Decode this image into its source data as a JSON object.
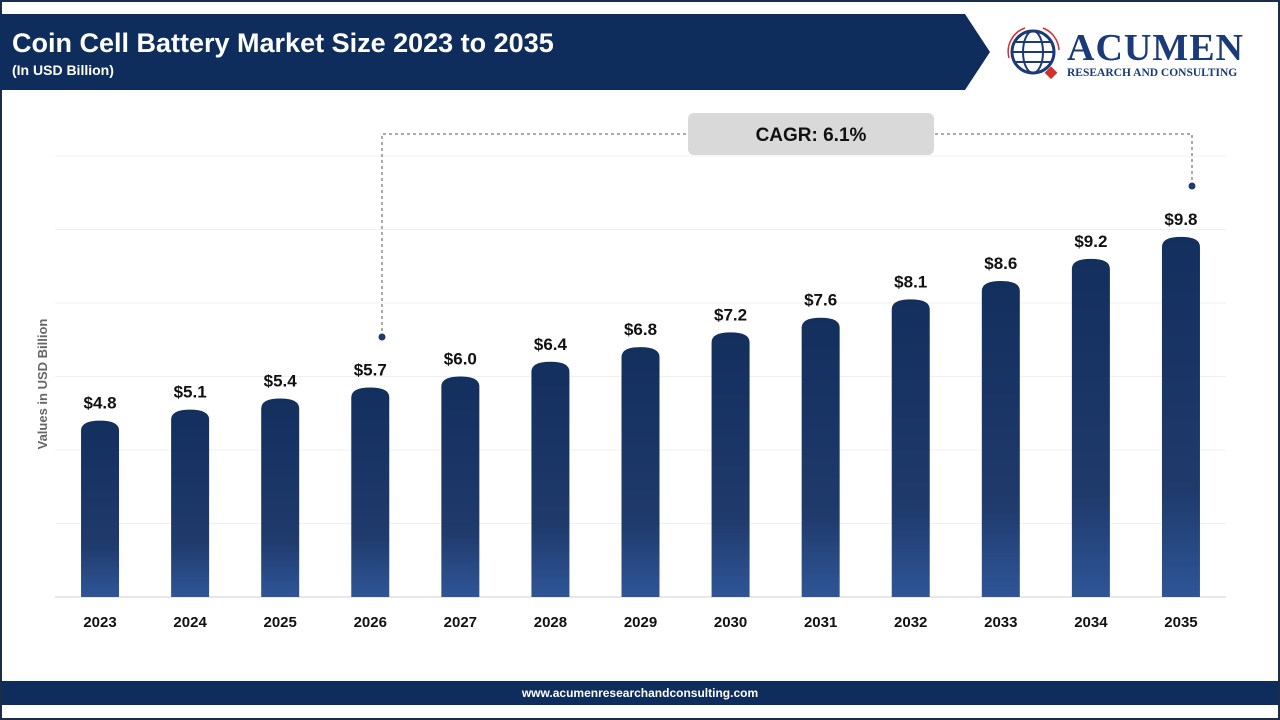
{
  "header": {
    "title": "Coin Cell Battery Market Size 2023 to 2035",
    "subtitle": "(In USD Billion)"
  },
  "logo": {
    "name": "ACUMEN",
    "tagline": "RESEARCH AND CONSULTING"
  },
  "footer": {
    "url": "www.acumenresearchandconsulting.com"
  },
  "colors": {
    "banner": "#0f2d5c",
    "bar_top": "#132f5e",
    "bar_bottom": "#2f5597"
  },
  "chart_data": {
    "type": "bar",
    "title": "Coin Cell Battery Market Size 2023 to 2035",
    "subtitle": "(In USD Billion)",
    "ylabel": "Values in USD Billion",
    "categories": [
      "2023",
      "2024",
      "2025",
      "2026",
      "2027",
      "2028",
      "2029",
      "2030",
      "2031",
      "2032",
      "2033",
      "2034",
      "2035"
    ],
    "values": [
      4.8,
      5.1,
      5.4,
      5.7,
      6.0,
      6.4,
      6.8,
      7.2,
      7.6,
      8.1,
      8.6,
      9.2,
      9.8
    ],
    "labels": [
      "$4.8",
      "$5.1",
      "$5.4",
      "$5.7",
      "$6.0",
      "$6.4",
      "$6.8",
      "$7.2",
      "$7.6",
      "$8.1",
      "$8.6",
      "$9.2",
      "$9.8"
    ],
    "ylim": [
      0,
      12
    ],
    "grid": true,
    "annotation": "CAGR: 6.1%"
  }
}
